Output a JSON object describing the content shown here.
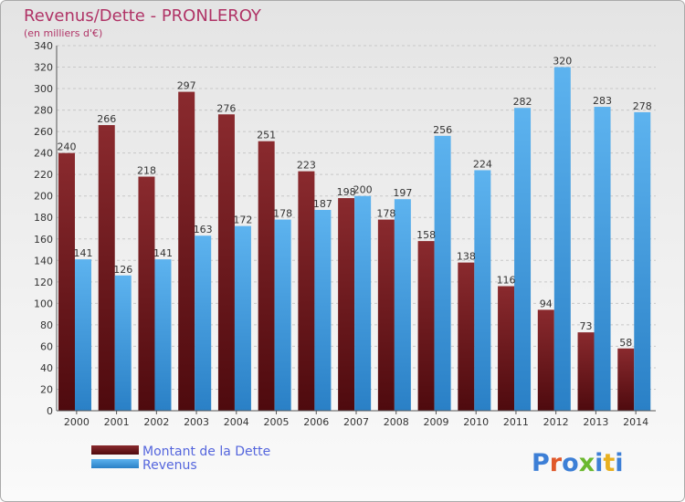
{
  "chart_data": {
    "type": "bar",
    "title": "Revenus/Dette - PRONLEROY",
    "subtitle": "(en milliers d'€)",
    "categories": [
      "2000",
      "2001",
      "2002",
      "2003",
      "2004",
      "2005",
      "2006",
      "2007",
      "2008",
      "2009",
      "2010",
      "2011",
      "2012",
      "2013",
      "2014"
    ],
    "series": [
      {
        "name": "Montant de la Dette",
        "values": [
          240,
          266,
          218,
          297,
          276,
          251,
          223,
          198,
          178,
          158,
          138,
          116,
          94,
          73,
          58
        ],
        "color": "#7a1d22"
      },
      {
        "name": "Revenus",
        "values": [
          141,
          126,
          141,
          163,
          172,
          178,
          187,
          200,
          197,
          256,
          224,
          282,
          320,
          283,
          278
        ],
        "color": "#4aa3e6"
      }
    ],
    "ylim": [
      0,
      340
    ],
    "ytick_step": 20,
    "grid": true,
    "legend_position": "bottom-left"
  },
  "branding": {
    "logo_text": "Proxiti"
  }
}
